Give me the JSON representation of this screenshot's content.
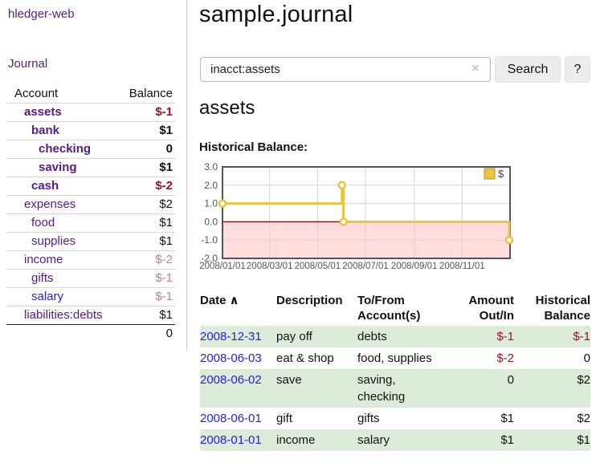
{
  "app_title": "hledger-web",
  "sidebar": {
    "journal_link": "Journal",
    "header": {
      "account": "Account",
      "balance": "Balance"
    },
    "accounts": [
      {
        "name": "assets",
        "balance": "$-1",
        "depth": 1,
        "bold": true,
        "balance_style": "neg-strong"
      },
      {
        "name": "bank",
        "balance": "$1",
        "depth": 2,
        "bold": true,
        "balance_style": "pos"
      },
      {
        "name": "checking",
        "balance": "0",
        "depth": 3,
        "bold": true,
        "balance_style": "pos"
      },
      {
        "name": "saving",
        "balance": "$1",
        "depth": 3,
        "bold": true,
        "balance_style": "pos"
      },
      {
        "name": "cash",
        "balance": "$-2",
        "depth": 2,
        "bold": true,
        "balance_style": "neg-strong"
      },
      {
        "name": "expenses",
        "balance": "$2",
        "depth": 1,
        "bold": false,
        "balance_style": "pos"
      },
      {
        "name": "food",
        "balance": "$1",
        "depth": 2,
        "bold": false,
        "balance_style": "pos"
      },
      {
        "name": "supplies",
        "balance": "$1",
        "depth": 2,
        "bold": false,
        "balance_style": "pos"
      },
      {
        "name": "income",
        "balance": "$-2",
        "depth": 1,
        "bold": false,
        "balance_style": "neg-muted"
      },
      {
        "name": "gifts",
        "balance": "$-1",
        "depth": 2,
        "bold": false,
        "balance_style": "neg-muted"
      },
      {
        "name": "salary",
        "balance": "$-1",
        "depth": 2,
        "bold": false,
        "balance_style": "neg-muted",
        "link_style": "blue"
      },
      {
        "name": "liabilities:debts",
        "balance": "$1",
        "depth": 1,
        "bold": false,
        "balance_style": "pos"
      }
    ],
    "total": "0"
  },
  "main": {
    "title": "sample.journal",
    "search": {
      "value": "inacct:assets",
      "clear_icon": "×",
      "search_button": "Search",
      "help_button": "?"
    },
    "account_heading": "assets",
    "chart_heading": "Historical Balance:"
  },
  "chart_data": {
    "type": "line",
    "style": "step-after",
    "title": "Historical Balance",
    "series": [
      {
        "name": "$",
        "color": "#edc240",
        "points": [
          [
            "2008-01-01",
            1
          ],
          [
            "2008-06-01",
            2
          ],
          [
            "2008-06-03",
            0
          ],
          [
            "2008-12-31",
            -1
          ]
        ]
      }
    ],
    "ylim": [
      -2,
      3
    ],
    "yticks": [
      "3.0",
      "2.0",
      "1.0",
      "0.0",
      "-1.0",
      "-2.0"
    ],
    "ytick_values": [
      3,
      2,
      1,
      0,
      -1,
      -2
    ],
    "xticks": [
      {
        "label": "2008/01/01",
        "date": "2008-01-01"
      },
      {
        "label": "2008/03/01",
        "date": "2008-03-01"
      },
      {
        "label": "2008/05/01",
        "date": "2008-05-01"
      },
      {
        "label": "2008/07/01",
        "date": "2008-07-01"
      },
      {
        "label": "2008/09/01",
        "date": "2008-09-01"
      },
      {
        "label": "2008/11/01",
        "date": "2008-11-01"
      }
    ],
    "xrange": [
      "2008-01-01",
      "2009-01-01"
    ],
    "grid": true,
    "legend": {
      "label": "$",
      "position": "top-right"
    },
    "negative_region_color": "#ffdddd",
    "zero_line_color": "#8b0000",
    "grid_color": "#d4d4d4",
    "border_color": "#545454",
    "tick_text_color": "#545454"
  },
  "table": {
    "sort_icon": "∧",
    "headers": [
      {
        "lines": [
          "Date"
        ],
        "sortable": true
      },
      {
        "lines": [
          "Description"
        ]
      },
      {
        "lines": [
          "To/From",
          "Account(s)"
        ]
      },
      {
        "lines": [
          "Amount",
          "Out/In"
        ],
        "align": "right"
      },
      {
        "lines": [
          "Historical",
          "Balance"
        ],
        "align": "right"
      }
    ],
    "rows": [
      {
        "date": "2008-12-31",
        "description": "pay off",
        "accounts": "debts",
        "amount": "$-1",
        "amount_neg": true,
        "balance": "$-1",
        "balance_neg": true,
        "shade": true
      },
      {
        "date": "2008-06-03",
        "description": "eat & shop",
        "accounts": "food, supplies",
        "amount": "$-2",
        "amount_neg": true,
        "balance": "0",
        "balance_neg": false,
        "shade": false
      },
      {
        "date": "2008-06-02",
        "description": "save",
        "accounts": "saving,\nchecking",
        "amount": "0",
        "amount_neg": false,
        "balance": "$2",
        "balance_neg": false,
        "shade": true
      },
      {
        "date": "2008-06-01",
        "description": "gift",
        "accounts": "gifts",
        "amount": "$1",
        "amount_neg": false,
        "balance": "$2",
        "balance_neg": false,
        "shade": false
      },
      {
        "date": "2008-01-01",
        "description": "income",
        "accounts": "salary",
        "amount": "$1",
        "amount_neg": false,
        "balance": "$1",
        "balance_neg": false,
        "shade": true
      }
    ]
  },
  "colors": {
    "purple_link": "#551a8b",
    "blue_link": "#2222dd",
    "neg_strong": "#a0131f",
    "neg_muted": "#c5807f",
    "row_green": "#dcecd8",
    "chart_line": "#edc240",
    "chart_border": "#545454",
    "chart_negative_fill": "#ffdddd",
    "zero_line": "#8b0000"
  }
}
